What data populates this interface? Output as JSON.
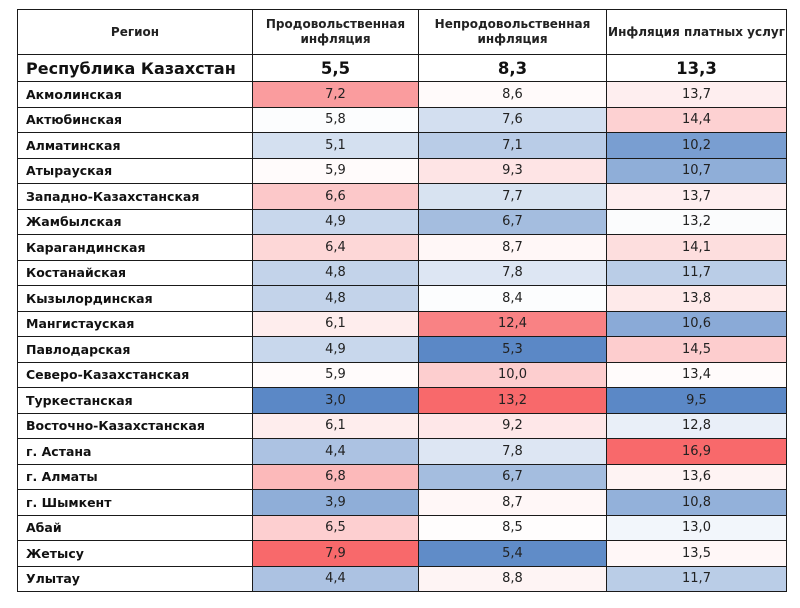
{
  "table": {
    "headers": [
      "Регион",
      "Продовольственная инфляция",
      "Непродовольственная инфляция",
      "Инфляция платных услуг"
    ],
    "total": {
      "region": "Республика Казахстан",
      "food": "5,5",
      "nonfood": "8,3",
      "services": "13,3"
    },
    "rows": [
      {
        "region": "Акмолинская",
        "food": "7,2",
        "nonfood": "8,6",
        "services": "13,7"
      },
      {
        "region": "Актюбинская",
        "food": "5,8",
        "nonfood": "7,6",
        "services": "14,4"
      },
      {
        "region": "Алматинская",
        "food": "5,1",
        "nonfood": "7,1",
        "services": "10,2"
      },
      {
        "region": "Атырауская",
        "food": "5,9",
        "nonfood": "9,3",
        "services": "10,7"
      },
      {
        "region": "Западно-Казахстанская",
        "food": "6,6",
        "nonfood": "7,7",
        "services": "13,7"
      },
      {
        "region": "Жамбылская",
        "food": "4,9",
        "nonfood": "6,7",
        "services": "13,2"
      },
      {
        "region": "Карагандинская",
        "food": "6,4",
        "nonfood": "8,7",
        "services": "14,1"
      },
      {
        "region": "Костанайская",
        "food": "4,8",
        "nonfood": "7,8",
        "services": "11,7"
      },
      {
        "region": "Кызылординская",
        "food": "4,8",
        "nonfood": "8,4",
        "services": "13,8"
      },
      {
        "region": "Мангистауская",
        "food": "6,1",
        "nonfood": "12,4",
        "services": "10,6"
      },
      {
        "region": "Павлодарская",
        "food": "4,9",
        "nonfood": "5,3",
        "services": "14,5"
      },
      {
        "region": "Северо-Казахстанская",
        "food": "5,9",
        "nonfood": "10,0",
        "services": "13,4"
      },
      {
        "region": "Туркестанская",
        "food": "3,0",
        "nonfood": "13,2",
        "services": "9,5"
      },
      {
        "region": "Восточно-Казахстанская",
        "food": "6,1",
        "nonfood": "9,2",
        "services": "12,8"
      },
      {
        "region": "г. Астана",
        "food": "4,4",
        "nonfood": "7,8",
        "services": "16,9"
      },
      {
        "region": "г. Алматы",
        "food": "6,8",
        "nonfood": "6,7",
        "services": "13,6"
      },
      {
        "region": "г. Шымкент",
        "food": "3,9",
        "nonfood": "8,7",
        "services": "10,8"
      },
      {
        "region": "Абай",
        "food": "6,5",
        "nonfood": "8,5",
        "services": "13,0"
      },
      {
        "region": "Жетысу",
        "food": "7,9",
        "nonfood": "5,4",
        "services": "13,5"
      },
      {
        "region": "Улытау",
        "food": "4,4",
        "nonfood": "8,8",
        "services": "11,7"
      }
    ]
  },
  "colors": {
    "low": "#5b88c6",
    "mid": "#ffffff",
    "high": "#f8696b",
    "border": "#1a1a1a"
  }
}
